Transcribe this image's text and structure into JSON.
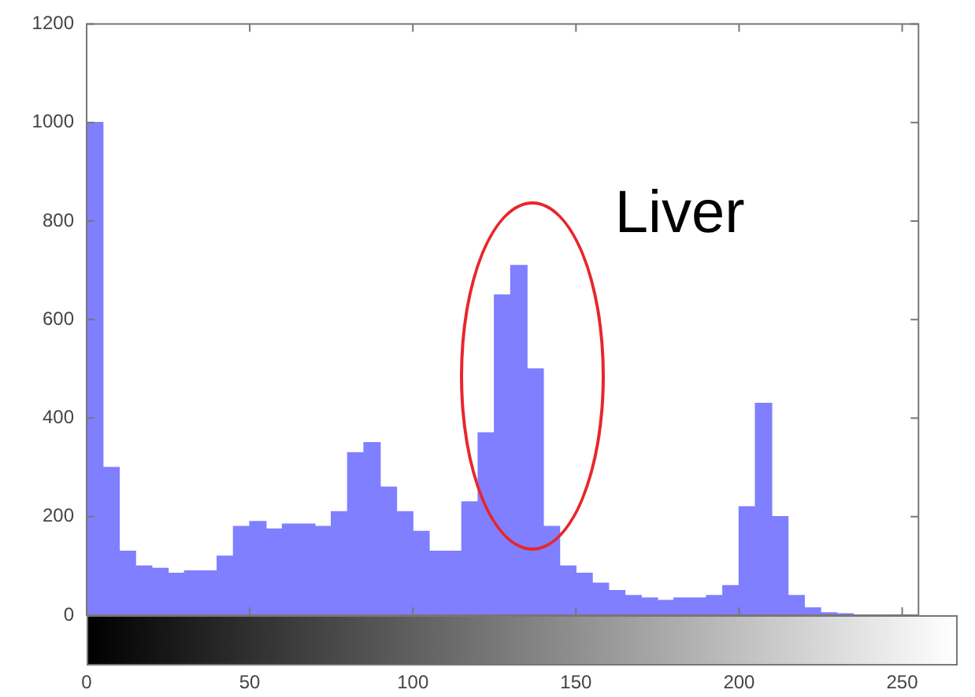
{
  "chart_data": {
    "type": "histogram",
    "bins": [
      0,
      5,
      10,
      15,
      20,
      25,
      30,
      35,
      40,
      45,
      50,
      55,
      60,
      65,
      70,
      75,
      80,
      85,
      90,
      95,
      100,
      105,
      110,
      115,
      120,
      125,
      130,
      135,
      140,
      145,
      150,
      155,
      160,
      165,
      170,
      175,
      180,
      185,
      190,
      195,
      200,
      205,
      210,
      215,
      220,
      225,
      230,
      235,
      240,
      245,
      250,
      255
    ],
    "values": [
      1000,
      300,
      130,
      100,
      95,
      85,
      90,
      90,
      120,
      180,
      190,
      175,
      185,
      185,
      180,
      210,
      330,
      350,
      260,
      210,
      170,
      130,
      130,
      230,
      370,
      650,
      710,
      500,
      180,
      100,
      85,
      65,
      50,
      40,
      35,
      30,
      35,
      35,
      40,
      60,
      220,
      430,
      200,
      40,
      15,
      5,
      3,
      0,
      0,
      0,
      0
    ],
    "color": "#7f7fff",
    "xlim": [
      0,
      255
    ],
    "xticks": [
      0,
      50,
      100,
      150,
      200,
      250
    ],
    "ylim": [
      0,
      1200
    ],
    "yticks": [
      0,
      200,
      400,
      600,
      800,
      1000,
      1200
    ],
    "grid": false,
    "legend": false,
    "annotations": [
      "Liver"
    ]
  }
}
